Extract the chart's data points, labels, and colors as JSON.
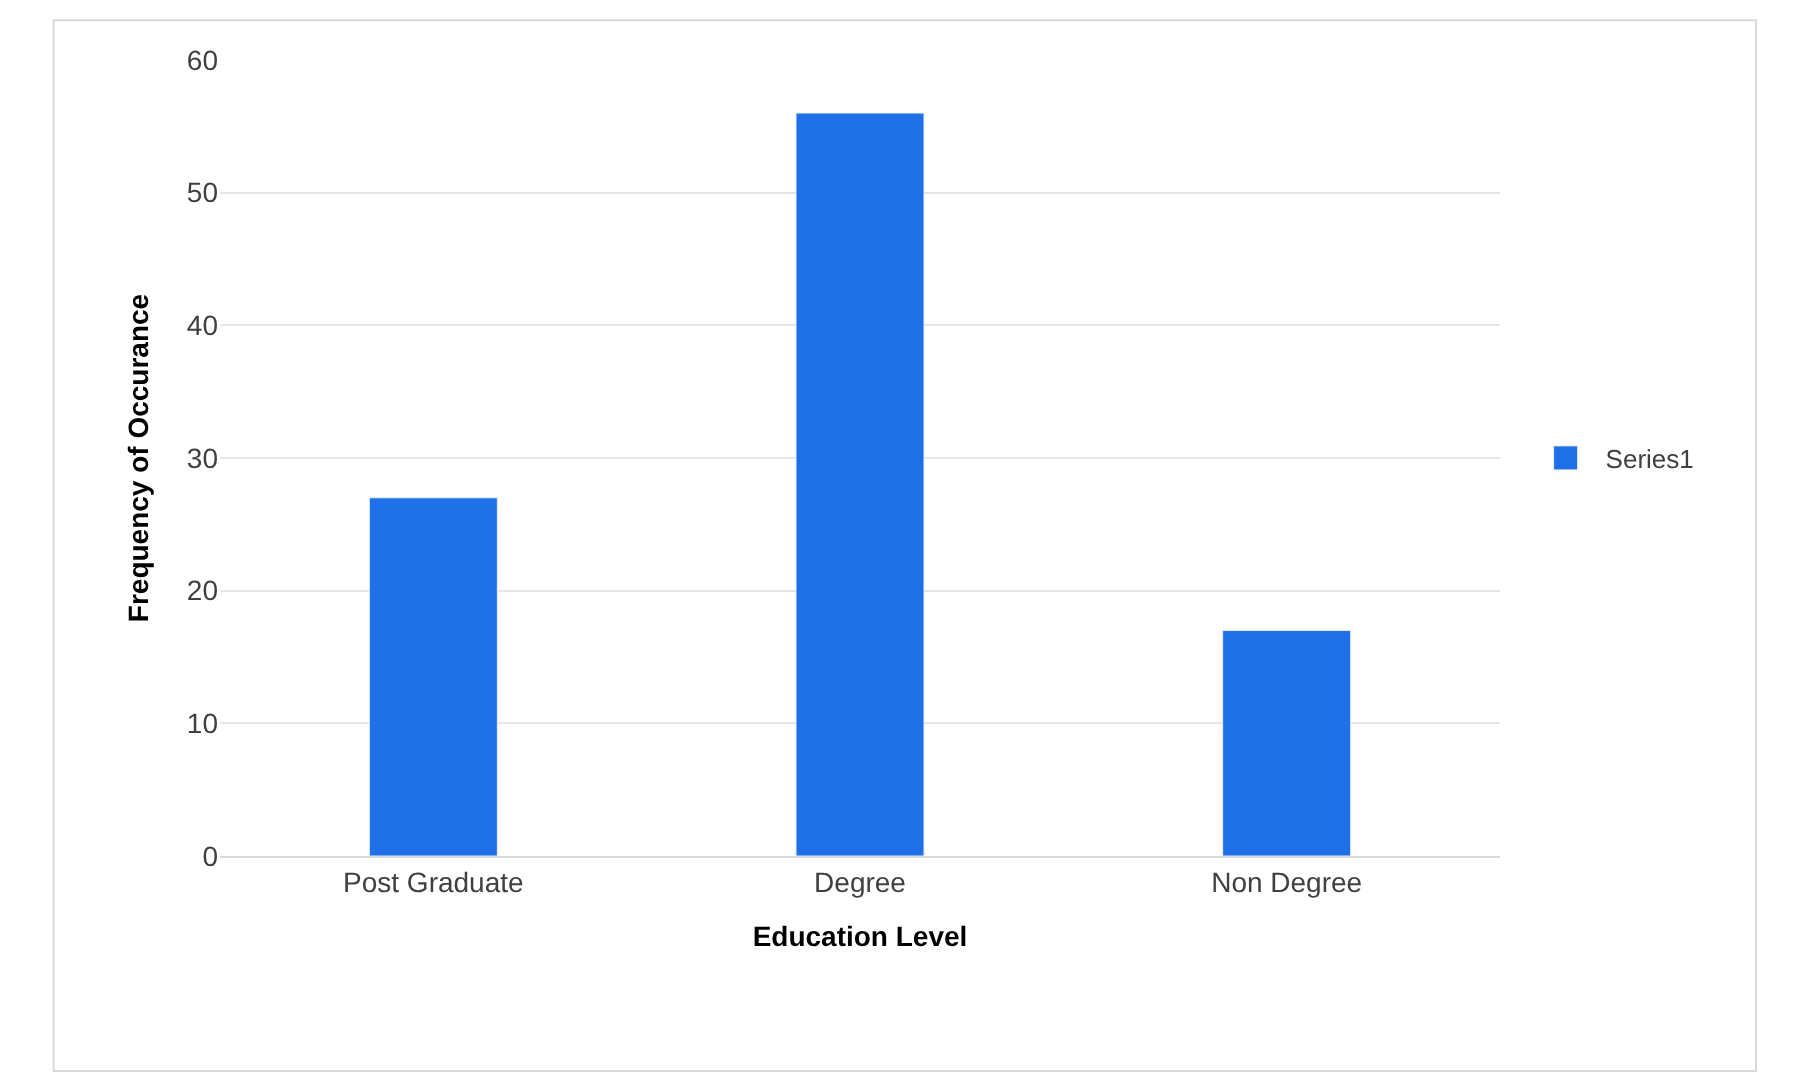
{
  "chart_data": {
    "type": "bar",
    "xlabel": "Education Level",
    "ylabel": "Frequency of Occurance",
    "categories": [
      "Post Graduate",
      "Degree",
      "Non Degree"
    ],
    "series": [
      {
        "name": "Series1",
        "color": "#1f6fe8",
        "values": [
          27,
          56,
          17
        ]
      }
    ],
    "ylim": [
      0,
      60
    ],
    "yticks": [
      0,
      10,
      20,
      30,
      40,
      50,
      60
    ],
    "grid": "y",
    "legend": "right"
  }
}
